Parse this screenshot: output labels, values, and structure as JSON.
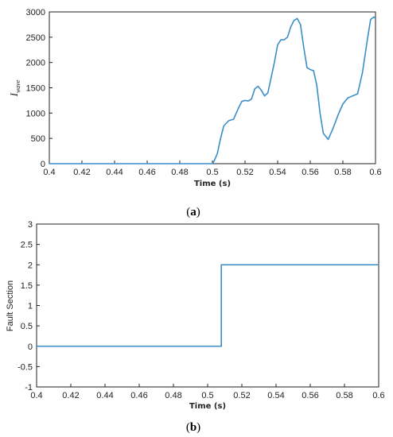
{
  "chart_data": [
    {
      "type": "line",
      "caption": {
        "open": "(",
        "letter": "a",
        "close": ")"
      },
      "xlabel": "Time (s)",
      "ylabel": {
        "base": "I",
        "sub": "wave"
      },
      "xlim": [
        0.4,
        0.6
      ],
      "ylim": [
        0,
        3000
      ],
      "xticks": [
        "0.4",
        "0.42",
        "0.44",
        "0.46",
        "0.48",
        "0.5",
        "0.52",
        "0.54",
        "0.56",
        "0.58",
        "0.6"
      ],
      "yticks": [
        "0",
        "500",
        "1000",
        "1500",
        "2000",
        "2500",
        "3000"
      ],
      "grid": false,
      "color": "#3a8ec8",
      "series": [
        {
          "x": [
            0.4,
            0.45,
            0.5,
            0.501,
            0.503,
            0.505,
            0.507,
            0.51,
            0.513,
            0.516,
            0.518,
            0.52,
            0.522,
            0.524,
            0.526,
            0.528,
            0.53,
            0.532,
            0.534,
            0.536,
            0.538,
            0.54,
            0.542,
            0.544,
            0.546,
            0.548,
            0.55,
            0.552,
            0.554,
            0.556,
            0.558,
            0.56,
            0.562,
            0.564,
            0.566,
            0.568,
            0.571,
            0.574,
            0.577,
            0.58,
            0.583,
            0.586,
            0.589,
            0.592,
            0.595,
            0.597,
            0.599,
            0.6
          ],
          "y": [
            0,
            0,
            0,
            50,
            200,
            500,
            750,
            850,
            880,
            1100,
            1230,
            1250,
            1240,
            1280,
            1480,
            1530,
            1450,
            1340,
            1400,
            1700,
            2000,
            2350,
            2450,
            2450,
            2500,
            2700,
            2830,
            2870,
            2750,
            2300,
            1900,
            1860,
            1840,
            1550,
            1000,
            600,
            480,
            700,
            960,
            1180,
            1300,
            1340,
            1380,
            1800,
            2450,
            2850,
            2900,
            2880
          ]
        }
      ]
    },
    {
      "type": "line",
      "caption": {
        "open": "(",
        "letter": "b",
        "close": ")"
      },
      "xlabel": "Time (s)",
      "ylabel": "Fault Section",
      "xlim": [
        0.4,
        0.6
      ],
      "ylim": [
        -1,
        3
      ],
      "xticks": [
        "0.4",
        "0.42",
        "0.44",
        "0.46",
        "0.48",
        "0.5",
        "0.52",
        "0.54",
        "0.56",
        "0.58",
        "0.6"
      ],
      "yticks": [
        "-1",
        "-0.5",
        "0",
        "0.5",
        "1",
        "1.5",
        "2",
        "2.5",
        "3"
      ],
      "grid": false,
      "color": "#3a8ec8",
      "series": [
        {
          "x": [
            0.4,
            0.508,
            0.508,
            0.6
          ],
          "y": [
            0,
            0,
            2,
            2
          ]
        }
      ]
    }
  ]
}
